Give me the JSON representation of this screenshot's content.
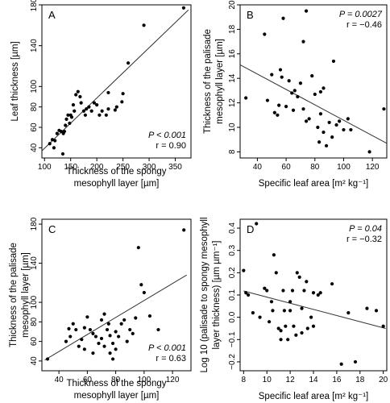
{
  "chart_data": [
    {
      "type": "scatter",
      "panel_label": "A",
      "xlabel_lines": [
        "Thickness of the spongy",
        "mesophyll layer [µm]"
      ],
      "ylabel_lines": [
        "Leaf thickness [µm]"
      ],
      "xlim": [
        95,
        380
      ],
      "ylim": [
        30,
        180
      ],
      "xticks": [
        100,
        150,
        200,
        250,
        300,
        350
      ],
      "yticks": [
        40,
        60,
        80,
        100,
        140,
        180
      ],
      "stat_p": "P < 0.001",
      "stat_r": "r = 0.90",
      "stat_position": "bottom-right",
      "regression": [
        [
          95,
          37
        ],
        [
          375,
          175
        ]
      ],
      "points": [
        [
          366,
          177
        ],
        [
          290,
          160
        ],
        [
          260,
          123
        ],
        [
          222,
          94
        ],
        [
          250,
          93
        ],
        [
          248,
          85
        ],
        [
          238,
          80
        ],
        [
          235,
          77
        ],
        [
          222,
          78
        ],
        [
          218,
          72
        ],
        [
          210,
          76
        ],
        [
          205,
          72
        ],
        [
          200,
          82
        ],
        [
          195,
          84
        ],
        [
          190,
          76
        ],
        [
          185,
          80
        ],
        [
          180,
          78
        ],
        [
          178,
          72
        ],
        [
          175,
          76
        ],
        [
          170,
          84
        ],
        [
          168,
          90
        ],
        [
          164,
          95
        ],
        [
          160,
          92
        ],
        [
          157,
          76
        ],
        [
          155,
          82
        ],
        [
          152,
          70
        ],
        [
          150,
          72
        ],
        [
          148,
          64
        ],
        [
          145,
          72
        ],
        [
          142,
          68
        ],
        [
          140,
          62
        ],
        [
          138,
          56
        ],
        [
          136,
          54
        ],
        [
          132,
          56
        ],
        [
          128,
          57
        ],
        [
          124,
          54
        ],
        [
          120,
          47
        ],
        [
          118,
          40
        ],
        [
          115,
          48
        ],
        [
          110,
          44
        ],
        [
          135,
          34
        ]
      ]
    },
    {
      "type": "scatter",
      "panel_label": "B",
      "xlabel_lines": [
        "Specific leaf area [m² kg⁻¹]"
      ],
      "ylabel_lines": [
        "Thickness of the palisade",
        "mesophyll layer [µm]"
      ],
      "xlim": [
        28,
        130
      ],
      "ylim": [
        7.5,
        20
      ],
      "xticks": [
        40,
        60,
        80,
        100,
        120
      ],
      "yticks": [
        8,
        10,
        12,
        14,
        16,
        18,
        20
      ],
      "stat_p": "P = 0.0027",
      "stat_r": "r = −0.46",
      "stat_position": "top-right",
      "regression": [
        [
          28,
          15.1
        ],
        [
          130,
          8.7
        ]
      ],
      "points": [
        [
          32,
          12.4
        ],
        [
          45,
          17.6
        ],
        [
          47,
          12.2
        ],
        [
          50,
          14.3
        ],
        [
          52,
          11.2
        ],
        [
          54,
          11.0
        ],
        [
          55,
          11.8
        ],
        [
          56,
          14.7
        ],
        [
          57,
          14.1
        ],
        [
          58,
          18.9
        ],
        [
          60,
          11.7
        ],
        [
          62,
          13.8
        ],
        [
          64,
          12.8
        ],
        [
          65,
          11.4
        ],
        [
          66,
          13.0
        ],
        [
          68,
          12.5
        ],
        [
          70,
          13.6
        ],
        [
          72,
          17.0
        ],
        [
          74,
          19.5
        ],
        [
          72,
          11.5
        ],
        [
          74,
          10.5
        ],
        [
          76,
          10.7
        ],
        [
          78,
          14.2
        ],
        [
          80,
          12.7
        ],
        [
          82,
          10.0
        ],
        [
          83,
          8.8
        ],
        [
          84,
          12.9
        ],
        [
          86,
          13.2
        ],
        [
          88,
          8.5
        ],
        [
          90,
          10.4
        ],
        [
          92,
          9.2
        ],
        [
          93,
          15.4
        ],
        [
          95,
          10.2
        ],
        [
          97,
          10.5
        ],
        [
          100,
          9.8
        ],
        [
          103,
          10.7
        ],
        [
          105,
          9.8
        ],
        [
          118,
          8.0
        ],
        [
          128,
          11.5
        ],
        [
          84,
          11.1
        ],
        [
          86,
          9.6
        ]
      ]
    },
    {
      "type": "scatter",
      "panel_label": "C",
      "xlabel_lines": [
        "Thickness of the spongy",
        "mesophyll layer [µm]"
      ],
      "ylabel_lines": [
        "Thickness of the palisade",
        "mesophyll layer [µm]"
      ],
      "xlim": [
        28,
        133
      ],
      "ylim": [
        30,
        185
      ],
      "xticks": [
        40,
        60,
        80,
        100,
        120
      ],
      "yticks": [
        40,
        60,
        80,
        100,
        140,
        180
      ],
      "stat_p": "P < 0.001",
      "stat_r": "r = 0.63",
      "stat_position": "bottom-right",
      "regression": [
        [
          30,
          41
        ],
        [
          130,
          128
        ]
      ],
      "points": [
        [
          32,
          42
        ],
        [
          45,
          60
        ],
        [
          47,
          73
        ],
        [
          48,
          65
        ],
        [
          50,
          78
        ],
        [
          52,
          72
        ],
        [
          54,
          55
        ],
        [
          56,
          62
        ],
        [
          58,
          52
        ],
        [
          58,
          74
        ],
        [
          60,
          85
        ],
        [
          62,
          72
        ],
        [
          64,
          68
        ],
        [
          64,
          48
        ],
        [
          66,
          65
        ],
        [
          68,
          58
        ],
        [
          70,
          82
        ],
        [
          70,
          63
        ],
        [
          72,
          88
        ],
        [
          72,
          55
        ],
        [
          74,
          72
        ],
        [
          75,
          78
        ],
        [
          76,
          66
        ],
        [
          76,
          48
        ],
        [
          78,
          42
        ],
        [
          78,
          58
        ],
        [
          80,
          52
        ],
        [
          80,
          70
        ],
        [
          82,
          65
        ],
        [
          84,
          78
        ],
        [
          86,
          82
        ],
        [
          88,
          60
        ],
        [
          90,
          72
        ],
        [
          92,
          68
        ],
        [
          94,
          84
        ],
        [
          96,
          156
        ],
        [
          98,
          118
        ],
        [
          100,
          110
        ],
        [
          104,
          86
        ],
        [
          110,
          72
        ],
        [
          128,
          174
        ]
      ]
    },
    {
      "type": "scatter",
      "panel_label": "D",
      "xlabel_lines": [
        "Specific leaf area [m² kg⁻¹]"
      ],
      "ylabel_lines": [
        "Log 10 (palisade to spongy mesophyll",
        "layer thickness) [µm µm⁻¹]"
      ],
      "xlim": [
        7.7,
        20.3
      ],
      "ylim": [
        -0.24,
        0.44
      ],
      "xticks": [
        8,
        10,
        12,
        14,
        16,
        18,
        20
      ],
      "yticks": [
        -0.2,
        -0.1,
        0.0,
        0.1,
        0.2,
        0.3,
        0.4
      ],
      "stat_p": "P = 0.04",
      "stat_r": "r = −0.32",
      "stat_position": "top-right",
      "regression": [
        [
          8,
          0.118
        ],
        [
          20.2,
          -0.05
        ]
      ],
      "points": [
        [
          8.0,
          0.21
        ],
        [
          8.2,
          0.11
        ],
        [
          8.4,
          0.1
        ],
        [
          8.8,
          0.02
        ],
        [
          9.1,
          0.42
        ],
        [
          9.4,
          0.0
        ],
        [
          9.8,
          0.13
        ],
        [
          10.0,
          0.12
        ],
        [
          10.2,
          -0.02
        ],
        [
          10.4,
          0.07
        ],
        [
          10.5,
          0.03
        ],
        [
          10.6,
          0.28
        ],
        [
          10.8,
          0.2
        ],
        [
          11.0,
          -0.05
        ],
        [
          11.2,
          -0.06
        ],
        [
          11.2,
          -0.1
        ],
        [
          11.4,
          0.12
        ],
        [
          11.5,
          0.03
        ],
        [
          11.6,
          -0.04
        ],
        [
          11.8,
          -0.1
        ],
        [
          12.0,
          0.07
        ],
        [
          12.0,
          0.03
        ],
        [
          12.2,
          0.12
        ],
        [
          12.3,
          -0.04
        ],
        [
          12.5,
          -0.08
        ],
        [
          12.6,
          0.2
        ],
        [
          12.8,
          0.18
        ],
        [
          13.0,
          0.04
        ],
        [
          13.0,
          -0.07
        ],
        [
          13.2,
          0.12
        ],
        [
          13.4,
          0.16
        ],
        [
          13.5,
          -0.05
        ],
        [
          13.8,
          0.0
        ],
        [
          14.0,
          0.11
        ],
        [
          14.0,
          -0.04
        ],
        [
          14.4,
          0.1
        ],
        [
          14.6,
          0.11
        ],
        [
          15.6,
          0.15
        ],
        [
          16.4,
          -0.21
        ],
        [
          17.0,
          0.02
        ],
        [
          17.6,
          -0.2
        ],
        [
          18.6,
          0.04
        ],
        [
          19.4,
          0.03
        ],
        [
          20.0,
          -0.04
        ]
      ]
    }
  ]
}
